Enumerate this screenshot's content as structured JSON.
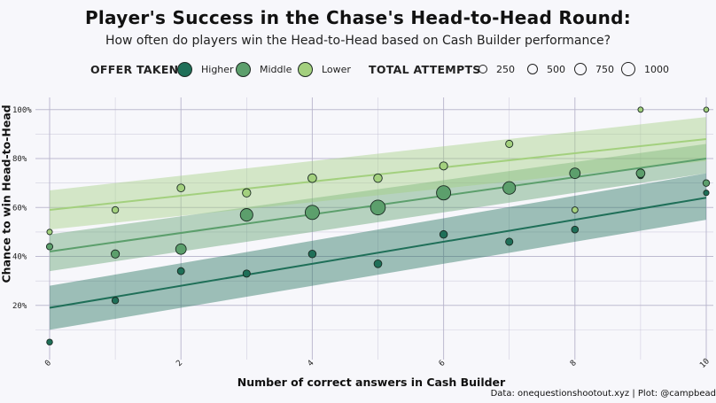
{
  "title": "Player's Success in the Chase's Head-to-Head Round:",
  "subtitle": "How often do players win the Head-to-Head based on Cash Builder performance?",
  "caption": "Data: onequestionshootout.xyz | Plot: @campbead",
  "legend": {
    "offer_title": "OFFER TAKEN",
    "offer_items": [
      {
        "label": "Higher",
        "color": "#1f6f58"
      },
      {
        "label": "Middle",
        "color": "#5c9f6c"
      },
      {
        "label": "Lower",
        "color": "#a3d07e"
      }
    ],
    "size_title": "TOTAL ATTEMPTS",
    "size_items": [
      "250",
      "500",
      "750",
      "1000"
    ]
  },
  "colors": {
    "higher": "#1f6f58",
    "middle": "#5c9f6c",
    "lower": "#a3d07e",
    "grid": "#b7b4cc",
    "background": "#f7f7fb"
  },
  "chart_data": {
    "type": "scatter",
    "title": "Player's Success in the Chase's Head-to-Head Round:",
    "subtitle": "How often do players win the Head-to-Head based on Cash Builder performance?",
    "xlabel": "Number of correct answers in Cash Builder",
    "ylabel": "Chance to win Head-to-Head",
    "xlim": [
      0,
      10
    ],
    "ylim": [
      0,
      1.05
    ],
    "x_ticks": [
      0,
      2,
      4,
      6,
      8,
      10
    ],
    "x_tick_labels": [
      "0",
      "2",
      "4",
      "6",
      "8",
      "10"
    ],
    "y_ticks": [
      0.2,
      0.4,
      0.6,
      0.8,
      1.0
    ],
    "y_tick_labels": [
      "20%",
      "40%",
      "60%",
      "80%",
      "100%"
    ],
    "grid": true,
    "legend_position": "top",
    "series": [
      {
        "name": "Higher",
        "color": "#1f6f58",
        "points": [
          {
            "x": 0,
            "y": 0.05,
            "n": 30
          },
          {
            "x": 1,
            "y": 0.22,
            "n": 60
          },
          {
            "x": 2,
            "y": 0.34,
            "n": 80
          },
          {
            "x": 3,
            "y": 0.33,
            "n": 90
          },
          {
            "x": 4,
            "y": 0.41,
            "n": 110
          },
          {
            "x": 5,
            "y": 0.37,
            "n": 120
          },
          {
            "x": 6,
            "y": 0.49,
            "n": 110
          },
          {
            "x": 7,
            "y": 0.46,
            "n": 90
          },
          {
            "x": 8,
            "y": 0.51,
            "n": 70
          },
          {
            "x": 9,
            "y": 0.73,
            "n": 40
          },
          {
            "x": 10,
            "y": 0.66,
            "n": 20
          }
        ],
        "fit": {
          "y_at_0": 0.19,
          "y_at_10": 0.64,
          "ci_at_0": [
            0.1,
            0.28
          ],
          "ci_at_10": [
            0.55,
            0.74
          ]
        }
      },
      {
        "name": "Middle",
        "color": "#5c9f6c",
        "points": [
          {
            "x": 0,
            "y": 0.44,
            "n": 50
          },
          {
            "x": 1,
            "y": 0.41,
            "n": 150
          },
          {
            "x": 2,
            "y": 0.43,
            "n": 350
          },
          {
            "x": 3,
            "y": 0.57,
            "n": 600
          },
          {
            "x": 4,
            "y": 0.58,
            "n": 850
          },
          {
            "x": 5,
            "y": 0.6,
            "n": 950
          },
          {
            "x": 6,
            "y": 0.66,
            "n": 850
          },
          {
            "x": 7,
            "y": 0.68,
            "n": 600
          },
          {
            "x": 8,
            "y": 0.74,
            "n": 350
          },
          {
            "x": 9,
            "y": 0.74,
            "n": 180
          },
          {
            "x": 10,
            "y": 0.7,
            "n": 60
          }
        ],
        "fit": {
          "y_at_0": 0.42,
          "y_at_10": 0.8,
          "ci_at_0": [
            0.34,
            0.49
          ],
          "ci_at_10": [
            0.74,
            0.86
          ]
        }
      },
      {
        "name": "Lower",
        "color": "#a3d07e",
        "points": [
          {
            "x": 0,
            "y": 0.5,
            "n": 20
          },
          {
            "x": 1,
            "y": 0.59,
            "n": 60
          },
          {
            "x": 2,
            "y": 0.68,
            "n": 120
          },
          {
            "x": 3,
            "y": 0.66,
            "n": 160
          },
          {
            "x": 4,
            "y": 0.72,
            "n": 180
          },
          {
            "x": 5,
            "y": 0.72,
            "n": 170
          },
          {
            "x": 6,
            "y": 0.77,
            "n": 140
          },
          {
            "x": 7,
            "y": 0.86,
            "n": 90
          },
          {
            "x": 8,
            "y": 0.59,
            "n": 40
          },
          {
            "x": 9,
            "y": 1.0,
            "n": 15
          },
          {
            "x": 10,
            "y": 1.0,
            "n": 10
          }
        ],
        "fit": {
          "y_at_0": 0.59,
          "y_at_10": 0.88,
          "ci_at_0": [
            0.51,
            0.67
          ],
          "ci_at_10": [
            0.79,
            0.97
          ]
        }
      }
    ],
    "size_legend": {
      "title": "TOTAL ATTEMPTS",
      "values": [
        250,
        500,
        750,
        1000
      ]
    }
  }
}
